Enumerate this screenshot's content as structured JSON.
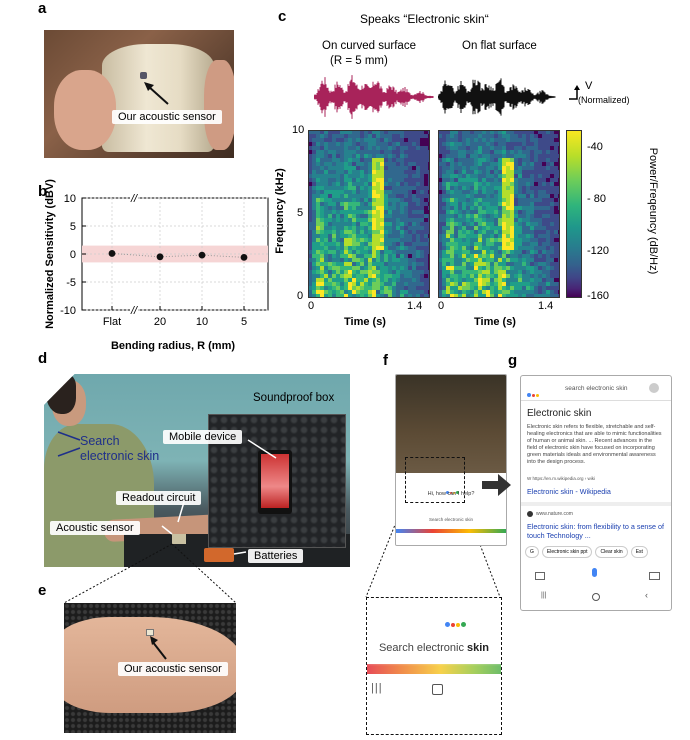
{
  "panels": {
    "a": "a",
    "b": "b",
    "c": "c",
    "d": "d",
    "e": "e",
    "f": "f",
    "g": "g"
  },
  "panel_a": {
    "callout": "Our acoustic sensor"
  },
  "panel_c": {
    "title": "Speaks “Electronic skin“",
    "curved_label_1": "On curved surface",
    "curved_label_2": "(R = 5 mm)",
    "flat_label": "On flat surface",
    "wave_unit_v": "V",
    "wave_unit_note": "(Normalized)",
    "ylabel": "Frequency (kHz)",
    "yticks": [
      "10",
      "5",
      "0"
    ],
    "xlabel": "Time (s)",
    "xticks": [
      "0",
      "1.4"
    ],
    "colorbar_label": "Power/Freqeuncy (dB/Hz)",
    "colorbar_ticks": [
      "-40",
      "- 80",
      "-120",
      "-160"
    ],
    "colors": {
      "curved_wave": "#a8235a",
      "flat_wave": "#111111"
    }
  },
  "panel_d": {
    "speech": "Search\nelectronic skin",
    "soundproof": "Soundproof box",
    "mobile": "Mobile device",
    "readout": "Readout circuit",
    "sensor": "Acoustic sensor",
    "batteries": "Batteries"
  },
  "panel_e": {
    "callout": "Our acoustic sensor"
  },
  "panel_f": {
    "prompt": "Hi, how can I help?",
    "query_small": "Search electronic skin",
    "zoom_text_light": "Search electronic ",
    "zoom_text_bold": "skin"
  },
  "panel_g": {
    "search_text": "search electronic skin",
    "heading": "Electronic skin",
    "body": "Electronic skin refers to flexible, stretchable and self-healing electronics that are able to mimic functionalities of human or animal skin. ... Recent advances in the field of electronic skin have focused on incorporating green materials ideals and environmental awareness into the design process.",
    "source": "W  https://en.m.wikipedia.org › wiki",
    "link1": "Electronic skin - Wikipedia",
    "site2": "www.nature.com",
    "link2": "Electronic skin: from flexibility to a sense of touch Technology ...",
    "chips": [
      "G",
      "Electronic skin ppt",
      "Clear skin",
      "Est"
    ]
  },
  "chart_data": {
    "type": "scatter",
    "xlabel": "Bending radius, R (mm)",
    "ylabel": "Normalized Sensitivity (dBV)",
    "categories": [
      "Flat",
      "20",
      "10",
      "5"
    ],
    "values": [
      0.1,
      -0.5,
      -0.2,
      -0.6
    ],
    "ylim": [
      -10,
      10
    ],
    "yticks": [
      "10",
      "5",
      "0",
      "-5",
      "-10"
    ],
    "band": [
      -1.5,
      1.5
    ],
    "axis_break": "//",
    "grid": true
  }
}
